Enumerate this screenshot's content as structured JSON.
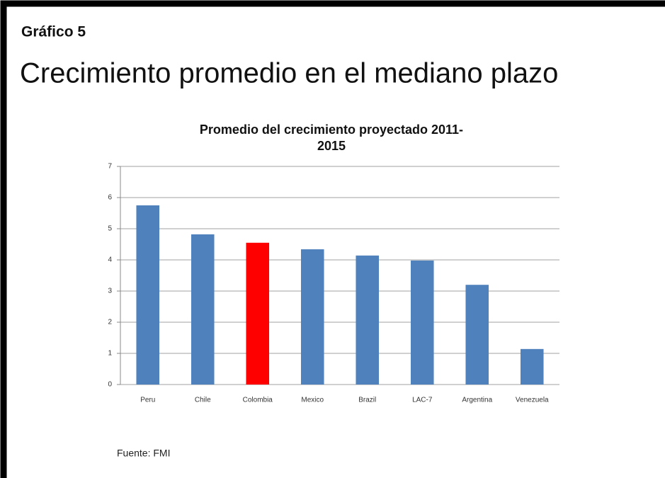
{
  "header": {
    "label": "Gráfico 5",
    "title": "Crecimiento promedio en el mediano plazo"
  },
  "chart_data": {
    "type": "bar",
    "title": [
      "Promedio del crecimiento proyectado 2011-",
      "2015"
    ],
    "categories": [
      "Peru",
      "Chile",
      "Colombia",
      "Mexico",
      "Brazil",
      "LAC-7",
      "Argentina",
      "Venezuela"
    ],
    "values": [
      5.75,
      4.82,
      4.55,
      4.34,
      4.14,
      3.98,
      3.2,
      1.14
    ],
    "colors": [
      "#4f81bd",
      "#4f81bd",
      "#ff0000",
      "#4f81bd",
      "#4f81bd",
      "#4f81bd",
      "#4f81bd",
      "#4f81bd"
    ],
    "ylim": [
      0,
      7
    ],
    "yticks": [
      0,
      1,
      2,
      3,
      4,
      5,
      6,
      7
    ],
    "grid": true
  },
  "footer": {
    "source": "Fuente:  FMI"
  }
}
